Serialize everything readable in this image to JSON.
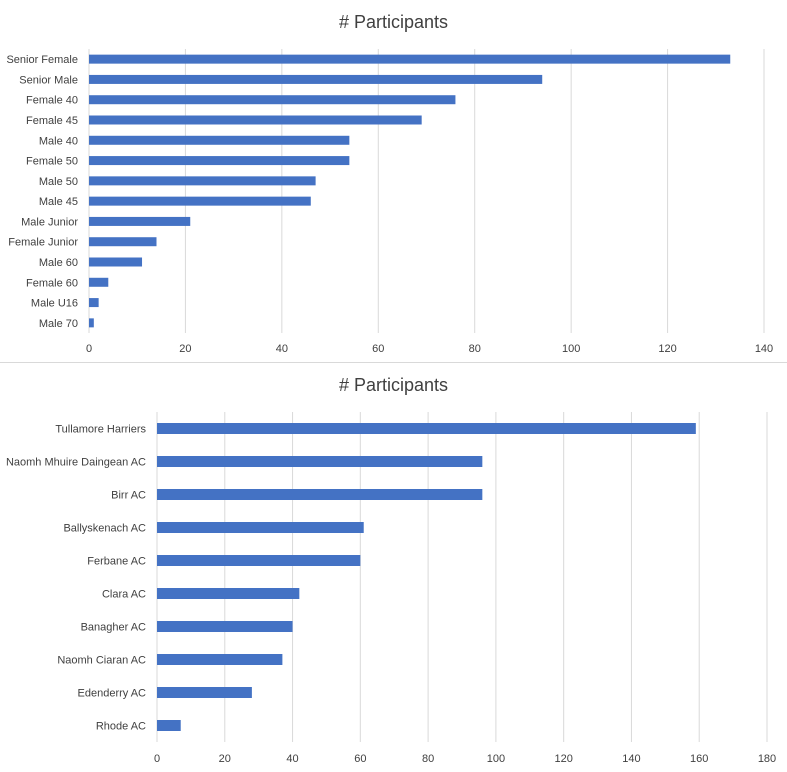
{
  "chart_data": [
    {
      "type": "bar",
      "orientation": "horizontal",
      "title": "# Participants",
      "categories": [
        "Senior Female",
        "Senior Male",
        "Female 40",
        "Female 45",
        "Male 40",
        "Female 50",
        "Male 50",
        "Male 45",
        "Male Junior",
        "Female Junior",
        "Male 60",
        "Female 60",
        "Male U16",
        "Male 70"
      ],
      "values": [
        133,
        94,
        76,
        69,
        54,
        54,
        47,
        46,
        21,
        14,
        11,
        4,
        2,
        1
      ],
      "xticks": [
        "0",
        "20",
        "40",
        "60",
        "80",
        "100",
        "120",
        "140"
      ],
      "xlim": [
        0,
        140
      ],
      "xlabel": "",
      "ylabel": "",
      "grid": true,
      "color": "#4472c4"
    },
    {
      "type": "bar",
      "orientation": "horizontal",
      "title": "# Participants",
      "categories": [
        "Tullamore Harriers",
        "Naomh Mhuire Daingean AC",
        "Birr AC",
        "Ballyskenach AC",
        "Ferbane AC",
        "Clara AC",
        "Banagher AC",
        "Naomh Ciaran AC",
        "Edenderry AC",
        "Rhode AC"
      ],
      "values": [
        159,
        96,
        96,
        61,
        60,
        42,
        40,
        37,
        28,
        7
      ],
      "xticks": [
        "0",
        "20",
        "40",
        "60",
        "80",
        "100",
        "120",
        "140",
        "160",
        "180"
      ],
      "xlim": [
        0,
        180
      ],
      "xlabel": "",
      "ylabel": "",
      "grid": true,
      "color": "#4472c4"
    }
  ]
}
